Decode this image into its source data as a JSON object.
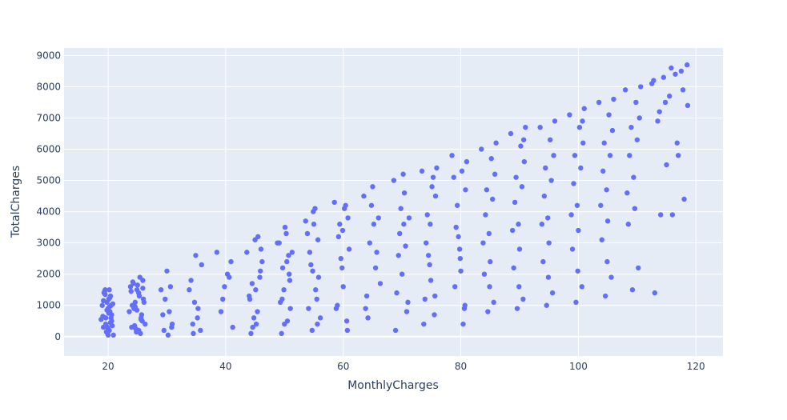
{
  "chart_data": {
    "type": "scatter",
    "title": "",
    "xlabel": "MonthlyCharges",
    "ylabel": "TotalCharges",
    "xlim": [
      12.5,
      124.6
    ],
    "ylim": [
      -620,
      9240
    ],
    "x_ticks": [
      20,
      40,
      60,
      80,
      100,
      120
    ],
    "y_ticks": [
      0,
      1000,
      2000,
      3000,
      4000,
      5000,
      6000,
      7000,
      8000,
      9000
    ],
    "grid": true,
    "legend": "none",
    "colors": {
      "marker": "#636efa",
      "plot_background": "#e5ecf6",
      "grid": "#ffffff",
      "text": "#2a3f5f"
    },
    "series": [
      {
        "values_note_omitted": true,
        "x": [
          18.8,
          19.2,
          19.5,
          19.8,
          20.0,
          20.2,
          20.4,
          20.6,
          20.9,
          19.0,
          19.6,
          20.1,
          20.5,
          19.3,
          19.9,
          20.3,
          20.7,
          19.4,
          20.0,
          20.8,
          19.1,
          19.7,
          20.2,
          20.6,
          19.5,
          20.1,
          20.4,
          19.2,
          19.8,
          20.3,
          20.0,
          19.6,
          20.5,
          19.9,
          20.2,
          23.6,
          24.0,
          24.3,
          24.6,
          24.9,
          25.1,
          25.4,
          25.7,
          26.0,
          26.3,
          23.8,
          24.4,
          24.8,
          25.2,
          25.6,
          25.9,
          24.1,
          24.7,
          25.3,
          25.8,
          24.2,
          24.9,
          25.5,
          26.1,
          23.9,
          24.5,
          25.0,
          25.6,
          24.6,
          25.2,
          25.9,
          29.0,
          29.5,
          30.0,
          30.4,
          30.9,
          29.7,
          30.2,
          30.6,
          29.3,
          30.8,
          33.8,
          34.4,
          34.9,
          35.3,
          35.7,
          34.1,
          34.7,
          35.2,
          35.9,
          34.5,
          38.5,
          39.2,
          39.8,
          40.3,
          40.9,
          41.2,
          39.5,
          40.6,
          43.6,
          44.1,
          44.6,
          45.0,
          45.4,
          45.8,
          46.2,
          44.3,
          45.1,
          45.9,
          44.8,
          45.5,
          44.0,
          45.2,
          46.0,
          44.5,
          48.8,
          49.3,
          49.7,
          50.1,
          50.5,
          50.9,
          51.3,
          49.5,
          50.3,
          51.0,
          49.9,
          50.7,
          49.1,
          50.0,
          50.8,
          49.6,
          50.4,
          53.6,
          54.1,
          54.5,
          54.9,
          55.3,
          55.7,
          56.1,
          54.3,
          55.0,
          55.8,
          54.7,
          55.5,
          53.9,
          54.8,
          55.6,
          55.2,
          58.5,
          59.0,
          59.4,
          59.8,
          60.2,
          60.6,
          61.0,
          59.2,
          60.0,
          60.8,
          59.6,
          60.4,
          58.8,
          59.9,
          60.7,
          63.5,
          64.0,
          64.5,
          65.0,
          65.5,
          66.0,
          64.2,
          65.2,
          66.3,
          64.8,
          65.7,
          63.8,
          68.6,
          69.1,
          69.6,
          70.0,
          70.4,
          70.8,
          71.2,
          69.4,
          70.2,
          71.0,
          69.8,
          70.6,
          68.9,
          70.3,
          73.4,
          73.9,
          74.3,
          74.7,
          75.1,
          75.5,
          75.9,
          74.1,
          74.9,
          75.7,
          74.5,
          75.3,
          73.7,
          74.8,
          75.6,
          78.5,
          79.0,
          79.4,
          79.8,
          80.2,
          80.6,
          81.0,
          79.2,
          80.0,
          80.8,
          79.6,
          80.4,
          78.8,
          79.9,
          80.7,
          83.5,
          84.0,
          84.4,
          84.8,
          85.2,
          85.6,
          86.0,
          84.2,
          85.0,
          85.8,
          84.6,
          85.4,
          83.8,
          84.9,
          88.5,
          89.0,
          89.4,
          89.8,
          90.2,
          90.6,
          91.0,
          89.2,
          90.0,
          90.8,
          89.6,
          90.4,
          88.8,
          89.9,
          90.7,
          93.5,
          94.0,
          94.4,
          94.8,
          95.2,
          95.6,
          96.0,
          94.2,
          95.0,
          95.8,
          94.6,
          95.4,
          93.8,
          94.9,
          98.5,
          99.0,
          99.4,
          99.8,
          100.2,
          100.6,
          101.0,
          99.2,
          100.0,
          100.8,
          99.6,
          100.4,
          98.8,
          99.9,
          100.7,
          103.5,
          104.0,
          104.4,
          104.8,
          105.2,
          105.6,
          106.0,
          104.2,
          105.0,
          105.8,
          104.6,
          105.4,
          103.8,
          104.9,
          108.0,
          108.5,
          109.0,
          109.4,
          109.8,
          110.2,
          110.6,
          108.7,
          109.6,
          110.4,
          109.2,
          110.0,
          108.3,
          112.5,
          113.0,
          113.5,
          114.0,
          114.5,
          115.0,
          115.5,
          116.0,
          116.5,
          117.0,
          117.5,
          118.0,
          118.5,
          112.8,
          113.8,
          114.8,
          115.8,
          116.8,
          117.8,
          118.6
        ],
        "y": [
          550,
          300,
          1500,
          1100,
          900,
          200,
          1300,
          700,
          50,
          1000,
          400,
          1200,
          600,
          1400,
          100,
          800,
          350,
          1450,
          250,
          1050,
          650,
          150,
          950,
          500,
          1350,
          750,
          450,
          1150,
          850,
          1250,
          50,
          600,
          1000,
          300,
          1500,
          800,
          300,
          1700,
          1100,
          1500,
          200,
          1900,
          700,
          1200,
          400,
          1600,
          900,
          150,
          1400,
          600,
          1800,
          1000,
          250,
          1300,
          500,
          1750,
          850,
          100,
          1100,
          1450,
          350,
          1650,
          550,
          950,
          200,
          1550,
          1500,
          200,
          2100,
          800,
          400,
          1200,
          50,
          1600,
          700,
          300,
          1500,
          400,
          2600,
          900,
          200,
          1800,
          1100,
          600,
          2300,
          100,
          2700,
          800,
          1600,
          2000,
          2400,
          300,
          1200,
          1900,
          2700,
          1200,
          300,
          3100,
          800,
          1900,
          2400,
          100,
          1500,
          2100,
          600,
          3200,
          1300,
          400,
          2800,
          1700,
          3000,
          1100,
          2200,
          3500,
          500,
          1800,
          2700,
          100,
          3300,
          900,
          1500,
          2600,
          3000,
          400,
          2000,
          1200,
          2400,
          3700,
          900,
          2300,
          4000,
          1500,
          3100,
          600,
          2700,
          3600,
          1900,
          200,
          1200,
          3300,
          2100,
          400,
          4100,
          4300,
          1000,
          3600,
          2200,
          4100,
          500,
          2800,
          3200,
          1600,
          3800,
          2500,
          4200,
          900,
          3400,
          200,
          4500,
          1300,
          3000,
          4800,
          2200,
          3800,
          600,
          3600,
          1700,
          4200,
          2700,
          900,
          5000,
          1400,
          3300,
          2000,
          4600,
          800,
          3800,
          2600,
          5200,
          1100,
          4100,
          2900,
          200,
          3600,
          5300,
          1200,
          3900,
          2300,
          4800,
          700,
          5400,
          3000,
          1800,
          4500,
          2600,
          5100,
          400,
          3600,
          1300,
          5800,
          1600,
          4200,
          2800,
          5300,
          900,
          5600,
          3500,
          2100,
          4700,
          3200,
          400,
          5100,
          2500,
          1000,
          6000,
          2000,
          4700,
          3300,
          5700,
          1100,
          6200,
          3900,
          2400,
          5200,
          800,
          4400,
          3000,
          1600,
          6500,
          2200,
          5100,
          3600,
          6100,
          1200,
          6700,
          4300,
          2800,
          5600,
          900,
          4800,
          3400,
          1600,
          6300,
          6700,
          2400,
          5400,
          3800,
          6300,
          1400,
          6900,
          4500,
          3000,
          5800,
          1000,
          5000,
          3600,
          1900,
          7100,
          2800,
          5800,
          4200,
          6700,
          1600,
          7300,
          4900,
          3400,
          6200,
          1100,
          5400,
          3900,
          2100,
          6900,
          7500,
          3100,
          6200,
          4700,
          7100,
          1900,
          7600,
          5300,
          3700,
          6600,
          1300,
          5800,
          4200,
          2400,
          7900,
          3600,
          6700,
          5100,
          7500,
          2200,
          8000,
          5800,
          4100,
          7000,
          1500,
          6300,
          4600,
          8100,
          1400,
          6900,
          3900,
          8300,
          5500,
          7700,
          3900,
          8400,
          5800,
          8500,
          4400,
          8700,
          8200,
          7200,
          7500,
          8600,
          6200,
          7900,
          7400
        ]
      }
    ]
  }
}
